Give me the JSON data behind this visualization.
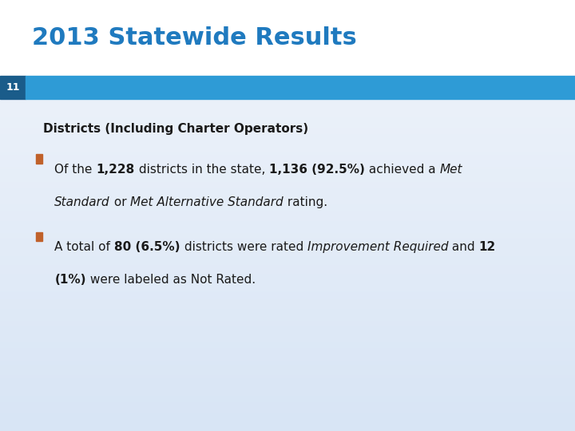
{
  "title": "2013 Statewide Results",
  "title_color": "#1F7ABF",
  "title_fontsize": 22,
  "slide_number": "11",
  "slide_num_color": "#FFFFFF",
  "header_bar_color": "#2E9BD6",
  "header_bar_dark": "#1A5C8A",
  "subtitle": "Districts (Including Charter Operators)",
  "subtitle_fontsize": 11,
  "bullet_color": "#C0612B",
  "bg_body": "#E4ECF7",
  "bg_title": "#FFFFFF",
  "text_color": "#1A1A1A",
  "body_fontsize": 11,
  "bullet1_line1": [
    {
      "text": "Of the ",
      "bold": false,
      "italic": false
    },
    {
      "text": "1,228",
      "bold": true,
      "italic": false
    },
    {
      "text": " districts in the state, ",
      "bold": false,
      "italic": false
    },
    {
      "text": "1,136 (92.5%)",
      "bold": true,
      "italic": false
    },
    {
      "text": " achieved a ",
      "bold": false,
      "italic": false
    },
    {
      "text": "Met",
      "bold": false,
      "italic": true
    }
  ],
  "bullet1_line2": [
    {
      "text": "Standard",
      "bold": false,
      "italic": true
    },
    {
      "text": " or ",
      "bold": false,
      "italic": false
    },
    {
      "text": "Met Alternative Standard",
      "bold": false,
      "italic": true
    },
    {
      "text": " rating.",
      "bold": false,
      "italic": false
    }
  ],
  "bullet2_line1": [
    {
      "text": "A total of ",
      "bold": false,
      "italic": false
    },
    {
      "text": "80 (6.5%)",
      "bold": true,
      "italic": false
    },
    {
      "text": " districts were rated ",
      "bold": false,
      "italic": false
    },
    {
      "text": "Improvement Required",
      "bold": false,
      "italic": true
    },
    {
      "text": " and ",
      "bold": false,
      "italic": false
    },
    {
      "text": "12",
      "bold": true,
      "italic": false
    }
  ],
  "bullet2_line2": [
    {
      "text": "(1%)",
      "bold": true,
      "italic": false
    },
    {
      "text": " were labeled as Not Rated.",
      "bold": false,
      "italic": false
    }
  ]
}
